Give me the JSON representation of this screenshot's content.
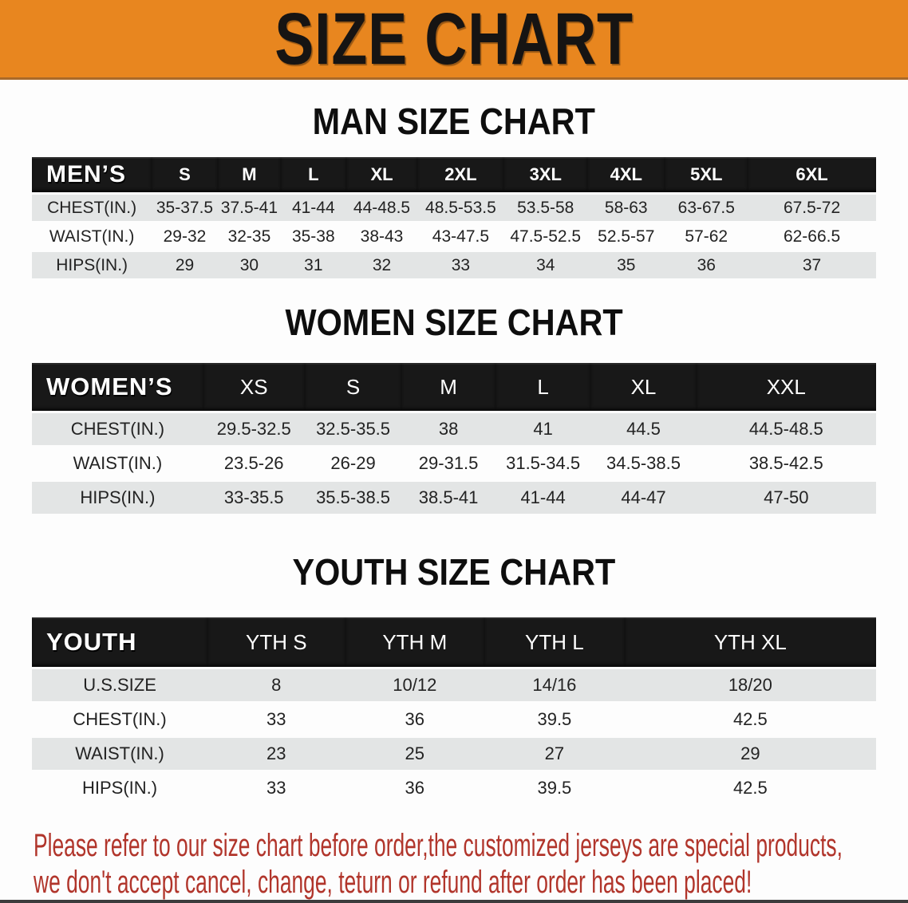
{
  "banner": {
    "title": "SIZE CHART"
  },
  "colors": {
    "banner_bg": "#E8861F",
    "banner_edge": "#A96A2A",
    "bar_bg": "#181818",
    "bar_text": "#FFFFFF",
    "row_gray": "#E3E5E5",
    "text_dark": "#232323",
    "heading": "#0E0E0E",
    "note_red": "#B1352B",
    "bottom_bar": "#3C3C3C"
  },
  "men": {
    "heading": "MAN SIZE CHART",
    "group_label": "MEN’S",
    "sizes": [
      "S",
      "M",
      "L",
      "XL",
      "2XL",
      "3XL",
      "4XL",
      "5XL",
      "6XL"
    ],
    "rows": [
      {
        "label": "CHEST(IN.)",
        "values": [
          "35-37.5",
          "37.5-41",
          "41-44",
          "44-48.5",
          "48.5-53.5",
          "53.5-58",
          "58-63",
          "63-67.5",
          "67.5-72"
        ]
      },
      {
        "label": "WAIST(IN.)",
        "values": [
          "29-32",
          "32-35",
          "35-38",
          "38-43",
          "43-47.5",
          "47.5-52.5",
          "52.5-57",
          "57-62",
          "62-66.5"
        ]
      },
      {
        "label": "HIPS(IN.)",
        "values": [
          "29",
          "30",
          "31",
          "32",
          "33",
          "34",
          "35",
          "36",
          "37"
        ]
      }
    ]
  },
  "women": {
    "heading": "WOMEN SIZE CHART",
    "group_label": "WOMEN’S",
    "sizes": [
      "XS",
      "S",
      "M",
      "L",
      "XL",
      "XXL"
    ],
    "rows": [
      {
        "label": "CHEST(IN.)",
        "values": [
          "29.5-32.5",
          "32.5-35.5",
          "38",
          "41",
          "44.5",
          "44.5-48.5"
        ]
      },
      {
        "label": "WAIST(IN.)",
        "values": [
          "23.5-26",
          "26-29",
          "29-31.5",
          "31.5-34.5",
          "34.5-38.5",
          "38.5-42.5"
        ]
      },
      {
        "label": "HIPS(IN.)",
        "values": [
          "33-35.5",
          "35.5-38.5",
          "38.5-41",
          "41-44",
          "44-47",
          "47-50"
        ]
      }
    ]
  },
  "youth": {
    "heading": "YOUTH SIZE CHART",
    "group_label": "YOUTH",
    "sizes": [
      "YTH S",
      "YTH M",
      "YTH L",
      "YTH XL"
    ],
    "rows": [
      {
        "label": "U.S.SIZE",
        "values": [
          "8",
          "10/12",
          "14/16",
          "18/20"
        ]
      },
      {
        "label": "CHEST(IN.)",
        "values": [
          "33",
          "36",
          "39.5",
          "42.5"
        ]
      },
      {
        "label": "WAIST(IN.)",
        "values": [
          "23",
          "25",
          "27",
          "29"
        ]
      },
      {
        "label": "HIPS(IN.)",
        "values": [
          "33",
          "36",
          "39.5",
          "42.5"
        ]
      }
    ]
  },
  "note": {
    "line1": "Please refer to our size chart before order,the customized jerseys are special products,",
    "line2": "we don't accept cancel, change, teturn or refund after order has been placed!"
  }
}
